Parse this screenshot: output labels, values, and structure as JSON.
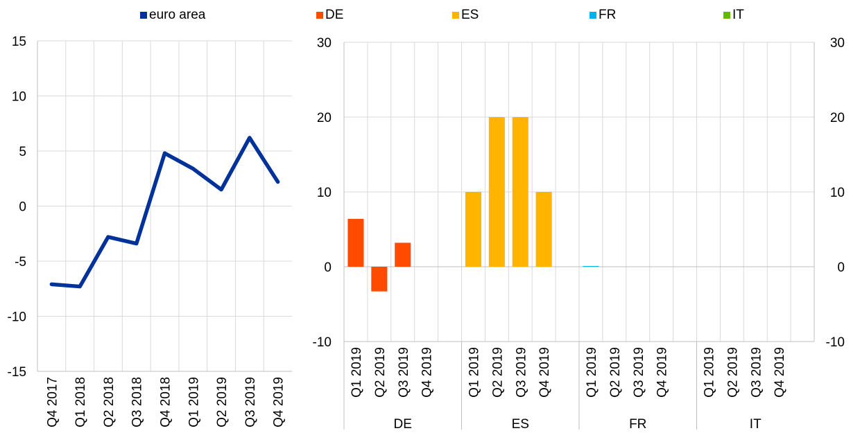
{
  "legend": [
    {
      "label": "euro area",
      "color": "#003299"
    },
    {
      "label": "DE",
      "color": "#ff4b00"
    },
    {
      "label": "ES",
      "color": "#ffb400"
    },
    {
      "label": "FR",
      "color": "#00b1ea"
    },
    {
      "label": "IT",
      "color": "#65b800"
    }
  ],
  "chart_data": [
    {
      "type": "line",
      "categories": [
        "Q4 2017",
        "Q1 2018",
        "Q2 2018",
        "Q3 2018",
        "Q4 2018",
        "Q1 2019",
        "Q2 2019",
        "Q3 2019",
        "Q4 2019"
      ],
      "series": [
        {
          "name": "euro area",
          "color": "#003299",
          "values": [
            -7.1,
            -7.3,
            -2.8,
            -3.4,
            4.8,
            3.4,
            1.5,
            6.2,
            2.2
          ]
        }
      ],
      "ylim": [
        -15,
        15
      ],
      "yticks": [
        -15,
        -10,
        -5,
        0,
        5,
        10,
        15
      ],
      "grid": true
    },
    {
      "type": "bar",
      "groups": [
        {
          "name": "DE",
          "color": "#ff4b00",
          "categories": [
            "Q1 2019",
            "Q2 2019",
            "Q3 2019",
            "Q4 2019"
          ],
          "values": [
            6.4,
            -3.3,
            3.2,
            0
          ]
        },
        {
          "name": "ES",
          "color": "#ffb400",
          "categories": [
            "Q1 2019",
            "Q2 2019",
            "Q3 2019",
            "Q4 2019"
          ],
          "values": [
            10,
            20,
            20,
            10
          ]
        },
        {
          "name": "FR",
          "color": "#00b1ea",
          "categories": [
            "Q1 2019",
            "Q2 2019",
            "Q3 2019",
            "Q4 2019"
          ],
          "values": [
            0.1,
            0,
            0,
            0
          ]
        },
        {
          "name": "IT",
          "color": "#65b800",
          "categories": [
            "Q1 2019",
            "Q2 2019",
            "Q3 2019",
            "Q4 2019"
          ],
          "values": [
            0,
            0,
            0,
            0
          ]
        }
      ],
      "ylim": [
        -10,
        30
      ],
      "yticks": [
        -10,
        0,
        10,
        20,
        30
      ],
      "grid": true
    }
  ]
}
